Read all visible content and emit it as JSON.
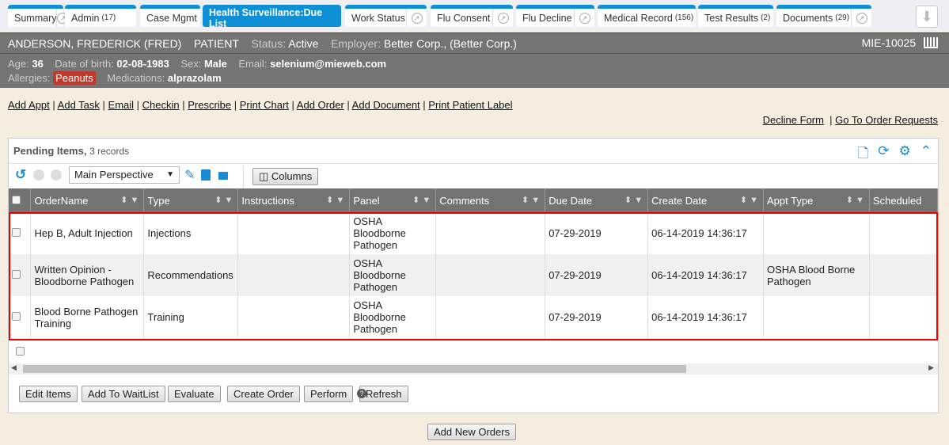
{
  "tabs": [
    {
      "label": "Summary",
      "count": "",
      "ext": true
    },
    {
      "label": "Admin",
      "count": "(17)",
      "ext": false
    },
    {
      "label": "Case Mgmt",
      "count": "",
      "ext": false
    },
    {
      "label": "Health Surveillance:Due List",
      "count": "",
      "ext": false,
      "active": true
    },
    {
      "label": "Work Status",
      "count": "",
      "ext": true
    },
    {
      "label": "Flu Consent",
      "count": "",
      "ext": true
    },
    {
      "label": "Flu Decline",
      "count": "",
      "ext": true
    },
    {
      "label": "Medical Record",
      "count": "(156)",
      "ext": false
    },
    {
      "label": "Test Results",
      "count": "(2)",
      "ext": false
    },
    {
      "label": "Documents",
      "count": "(29)",
      "ext": true
    }
  ],
  "patient": {
    "name": "ANDERSON, FREDERICK (FRED)",
    "role": "PATIENT",
    "status_label": "Status:",
    "status": "Active",
    "employer_label": "Employer:",
    "employer": "Better Corp., (Better Corp.)",
    "id": "MIE-10025",
    "age_label": "Age:",
    "age": "36",
    "dob_label": "Date of birth:",
    "dob": "02-08-1983",
    "sex_label": "Sex:",
    "sex": "Male",
    "email_label": "Email:",
    "email": "selenium@mieweb.com",
    "allergies_label": "Allergies:",
    "allergies": "Peanuts",
    "meds_label": "Medications:",
    "meds": "alprazolam"
  },
  "actions": [
    "Add Appt",
    "Add Task",
    "Email",
    "Checkin",
    "Prescribe",
    "Print Chart",
    "Add Order",
    "Add Document",
    "Print Patient Label"
  ],
  "right_links": [
    "Decline Form",
    "Go To Order Requests"
  ],
  "panel": {
    "title": "Pending Items,",
    "count": "3 records",
    "perspective": "Main Perspective",
    "columns_btn": "Columns"
  },
  "columns": [
    "OrderName",
    "Type",
    "Instructions",
    "Panel",
    "Comments",
    "Due Date",
    "Create Date",
    "Appt Type",
    "Scheduled"
  ],
  "rows": [
    [
      "Hep B, Adult Injection",
      "Injections",
      "",
      "OSHA Bloodborne Pathogen",
      "",
      "07-29-2019",
      "06-14-2019 14:36:17",
      "",
      ""
    ],
    [
      "Written Opinion - Bloodborne Pathogen",
      "Recommendations",
      "",
      "OSHA Bloodborne Pathogen",
      "",
      "07-29-2019",
      "06-14-2019 14:36:17",
      "OSHA Blood Borne Pathogen",
      ""
    ],
    [
      "Blood Borne Pathogen Training",
      "Training",
      "",
      "OSHA Bloodborne Pathogen",
      "",
      "07-29-2019",
      "06-14-2019 14:36:17",
      "",
      ""
    ]
  ],
  "buttons": [
    "Edit Items",
    "Add To WaitList",
    "Evaluate",
    "Create Order",
    "Perform",
    "Refresh"
  ],
  "add_new": "Add New Orders",
  "accent": "#0f8fd6",
  "highlight": "#ee0000"
}
